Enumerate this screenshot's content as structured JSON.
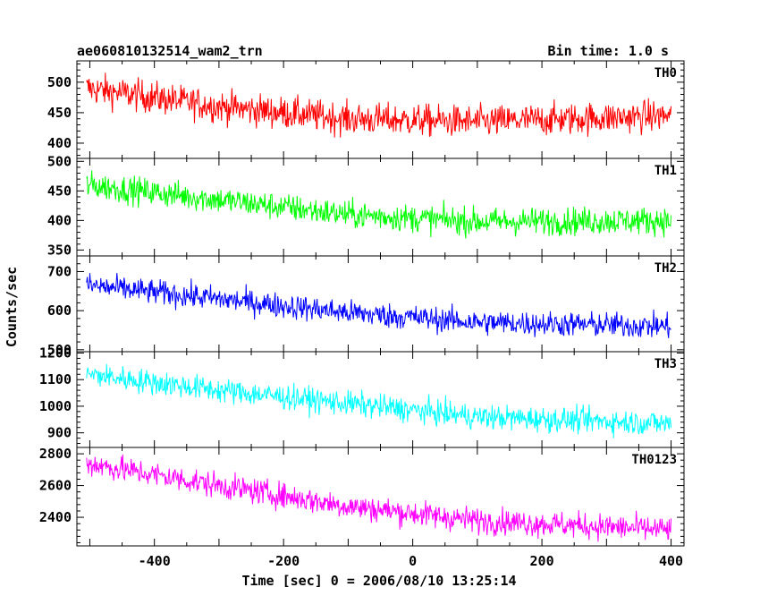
{
  "header": {
    "title": "ae060810132514_wam2_trn",
    "bin_time": "Bin time: 1.0 s"
  },
  "chart_data": {
    "type": "line",
    "xlabel": "Time [sec] 0 = 2006/08/10 13:25:14",
    "ylabel": "Counts/sec",
    "xlim": [
      -520,
      420
    ],
    "xticks": [
      -400,
      -200,
      0,
      200,
      400
    ],
    "x_range": [
      -505,
      400
    ],
    "bin_time_s": 1.0,
    "panels": [
      {
        "name": "TH0",
        "color": "#ff0000",
        "ylim": [
          375,
          535
        ],
        "yticks": [
          400,
          450,
          500
        ],
        "trend": [
          {
            "x": -505,
            "y": 490
          },
          {
            "x": -300,
            "y": 460
          },
          {
            "x": -100,
            "y": 440
          },
          {
            "x": 100,
            "y": 435
          },
          {
            "x": 400,
            "y": 445
          }
        ],
        "noise_amplitude": 45
      },
      {
        "name": "TH1",
        "color": "#00ff00",
        "ylim": [
          340,
          505
        ],
        "yticks": [
          350,
          400,
          450,
          500
        ],
        "trend": [
          {
            "x": -505,
            "y": 460
          },
          {
            "x": -300,
            "y": 435
          },
          {
            "x": -100,
            "y": 410
          },
          {
            "x": 100,
            "y": 398
          },
          {
            "x": 400,
            "y": 400
          }
        ],
        "noise_amplitude": 40
      },
      {
        "name": "TH2",
        "color": "#0000ff",
        "ylim": [
          495,
          740
        ],
        "yticks": [
          500,
          600,
          700
        ],
        "trend": [
          {
            "x": -505,
            "y": 665
          },
          {
            "x": -300,
            "y": 630
          },
          {
            "x": -100,
            "y": 595
          },
          {
            "x": 100,
            "y": 570
          },
          {
            "x": 400,
            "y": 560
          }
        ],
        "noise_amplitude": 55
      },
      {
        "name": "TH3",
        "color": "#00ffff",
        "ylim": [
          845,
          1205
        ],
        "yticks": [
          900,
          1000,
          1100,
          1200
        ],
        "trend": [
          {
            "x": -505,
            "y": 1120
          },
          {
            "x": -300,
            "y": 1060
          },
          {
            "x": -100,
            "y": 1010
          },
          {
            "x": 100,
            "y": 960
          },
          {
            "x": 400,
            "y": 935
          }
        ],
        "noise_amplitude": 80
      },
      {
        "name": "TH0123",
        "color": "#ff00ff",
        "ylim": [
          2220,
          2840
        ],
        "yticks": [
          2400,
          2600,
          2800
        ],
        "trend": [
          {
            "x": -505,
            "y": 2740
          },
          {
            "x": -300,
            "y": 2600
          },
          {
            "x": -100,
            "y": 2470
          },
          {
            "x": 100,
            "y": 2380
          },
          {
            "x": 400,
            "y": 2320
          }
        ],
        "noise_amplitude": 140
      }
    ]
  }
}
